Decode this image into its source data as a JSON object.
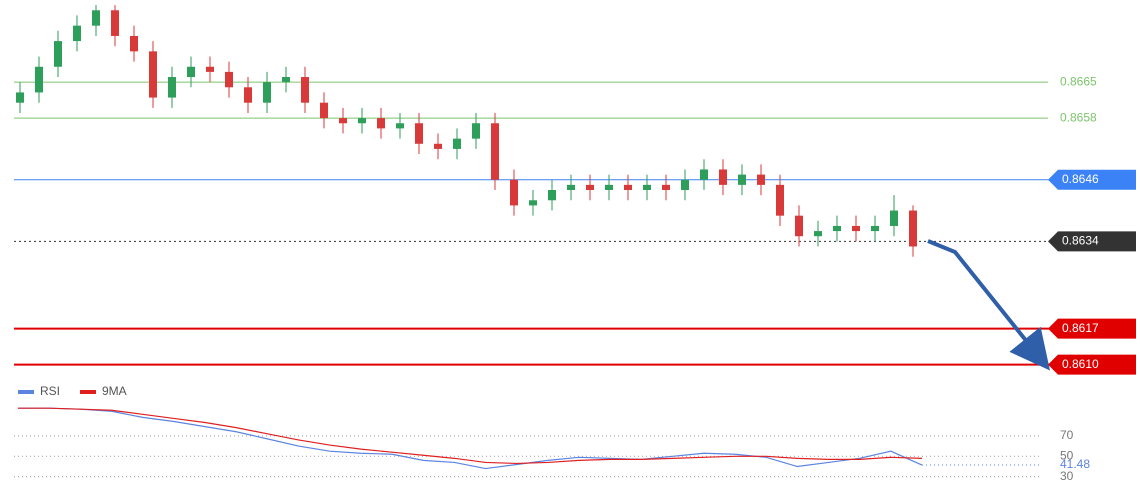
{
  "chart_data": {
    "type": "candlestick",
    "ylim": [
      0.8607,
      0.8681
    ],
    "up_color": "#2e9e5b",
    "down_color": "#d83a3a",
    "open": [
      0.8661,
      0.8663,
      0.8668,
      0.8673,
      0.8676,
      0.8679,
      0.8674,
      0.8671,
      0.8662,
      0.8666,
      0.8668,
      0.8667,
      0.8664,
      0.8661,
      0.8665,
      0.8666,
      0.8661,
      0.8658,
      0.8657,
      0.8658,
      0.8656,
      0.8657,
      0.8653,
      0.8652,
      0.8654,
      0.8657,
      0.8646,
      0.8641,
      0.8642,
      0.8644,
      0.8645,
      0.8644,
      0.8645,
      0.8644,
      0.8645,
      0.8644,
      0.8646,
      0.8648,
      0.8645,
      0.8647,
      0.8645,
      0.8639,
      0.8635,
      0.8636,
      0.8637,
      0.8636,
      0.8637,
      0.864
    ],
    "high": [
      0.8665,
      0.867,
      0.8675,
      0.8678,
      0.868,
      0.868,
      0.8676,
      0.8673,
      0.8668,
      0.867,
      0.867,
      0.8669,
      0.8666,
      0.8667,
      0.8668,
      0.8668,
      0.8663,
      0.866,
      0.866,
      0.866,
      0.8659,
      0.8659,
      0.8655,
      0.8656,
      0.8659,
      0.8659,
      0.8648,
      0.8644,
      0.8646,
      0.8647,
      0.8647,
      0.8647,
      0.8647,
      0.8647,
      0.8647,
      0.8648,
      0.865,
      0.865,
      0.8649,
      0.8649,
      0.8647,
      0.8641,
      0.8638,
      0.8639,
      0.8639,
      0.8639,
      0.8643,
      0.8641
    ],
    "low": [
      0.8659,
      0.8661,
      0.8666,
      0.8671,
      0.8674,
      0.8672,
      0.8669,
      0.866,
      0.866,
      0.8664,
      0.8665,
      0.8662,
      0.8659,
      0.8659,
      0.8663,
      0.8659,
      0.8656,
      0.8655,
      0.8655,
      0.8654,
      0.8654,
      0.8651,
      0.865,
      0.865,
      0.8652,
      0.8644,
      0.8639,
      0.8639,
      0.864,
      0.8642,
      0.8642,
      0.8642,
      0.8642,
      0.8642,
      0.8642,
      0.8642,
      0.8644,
      0.8643,
      0.8643,
      0.8643,
      0.8637,
      0.8633,
      0.8633,
      0.8634,
      0.8634,
      0.8634,
      0.8635,
      0.8631
    ],
    "close": [
      0.8663,
      0.8668,
      0.8673,
      0.8676,
      0.8679,
      0.8674,
      0.8671,
      0.8662,
      0.8666,
      0.8668,
      0.8667,
      0.8664,
      0.8661,
      0.8665,
      0.8666,
      0.8661,
      0.8658,
      0.8657,
      0.8658,
      0.8656,
      0.8657,
      0.8653,
      0.8652,
      0.8654,
      0.8657,
      0.8646,
      0.8641,
      0.8642,
      0.8644,
      0.8645,
      0.8644,
      0.8645,
      0.8644,
      0.8645,
      0.8644,
      0.8646,
      0.8648,
      0.8645,
      0.8647,
      0.8645,
      0.8639,
      0.8635,
      0.8636,
      0.8637,
      0.8636,
      0.8637,
      0.864,
      0.8633
    ],
    "levels": [
      {
        "value": 0.8665,
        "label": "0.8665",
        "color": "#7cc46a",
        "style": "text",
        "line": "solid"
      },
      {
        "value": 0.8658,
        "label": "0.8658",
        "color": "#7cc46a",
        "style": "text",
        "line": "solid"
      },
      {
        "value": 0.8646,
        "label": "0.8646",
        "color": "#3b82f6",
        "style": "badge",
        "line": "solid"
      },
      {
        "value": 0.8634,
        "label": "0.8634",
        "color": "#333333",
        "style": "badge",
        "line": "dotted"
      },
      {
        "value": 0.8617,
        "label": "0.8617",
        "color": "#e00000",
        "style": "badge",
        "line": "solid"
      },
      {
        "value": 0.861,
        "label": "0.8610",
        "color": "#e00000",
        "style": "badge",
        "line": "solid"
      }
    ],
    "rsi": {
      "ylim": [
        20,
        105
      ],
      "yticks": [
        70,
        50,
        30
      ],
      "last_value": 41.48,
      "series": [
        {
          "name": "RSI",
          "color": "#5b84e0",
          "values": [
            97,
            97,
            96,
            94,
            88,
            84,
            79,
            74,
            67,
            60,
            55,
            53,
            52,
            46,
            44,
            38,
            42,
            46,
            49,
            48,
            47,
            50,
            53,
            52,
            49,
            40,
            44,
            48,
            55,
            41.48
          ]
        },
        {
          "name": "9MA",
          "color": "#e02020",
          "values": [
            97,
            97,
            96,
            95,
            91,
            87,
            83,
            78,
            72,
            66,
            61,
            57,
            54,
            51,
            48,
            44,
            43,
            44,
            46,
            47,
            47,
            48,
            49,
            50,
            50,
            48,
            47,
            47,
            49,
            48
          ]
        }
      ]
    }
  }
}
